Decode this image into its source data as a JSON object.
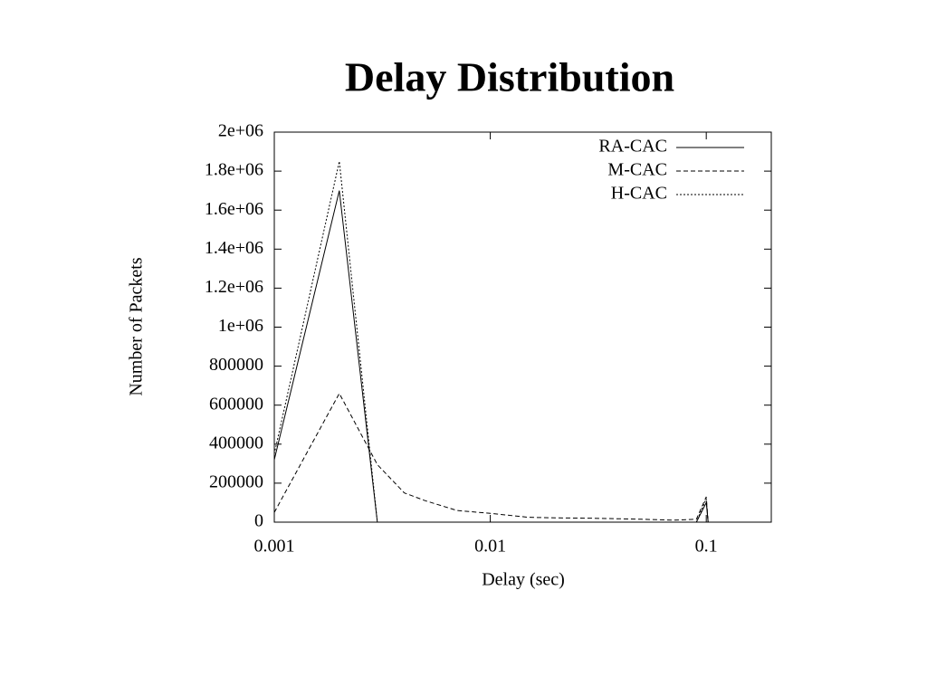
{
  "chart_data": {
    "type": "line",
    "title": "Delay Distribution",
    "xlabel": "Delay (sec)",
    "ylabel": "Number of Packets",
    "xscale": "log",
    "legend": "upper right",
    "x": [
      0.001,
      0.002,
      0.003,
      0.004,
      0.005,
      0.007,
      0.01,
      0.015,
      0.02,
      0.03,
      0.05,
      0.07,
      0.09,
      0.1,
      0.102
    ],
    "series": [
      {
        "name": "RA-CAC",
        "color": "#000000",
        "dash": "none",
        "values": [
          320000,
          1700000,
          0,
          0,
          0,
          0,
          0,
          0,
          0,
          0,
          0,
          0,
          0,
          100000,
          0
        ]
      },
      {
        "name": "M-CAC",
        "color": "#000000",
        "dash": "5,3",
        "values": [
          50000,
          660000,
          295000,
          150000,
          110000,
          60000,
          45000,
          25000,
          22000,
          20000,
          15000,
          10000,
          15000,
          130000,
          0
        ]
      },
      {
        "name": "H-CAC",
        "color": "#000000",
        "dash": "2,2",
        "values": [
          350000,
          1850000,
          0,
          0,
          0,
          0,
          0,
          0,
          0,
          0,
          0,
          0,
          0,
          120000,
          0
        ]
      }
    ],
    "xlim": [
      0.001,
      0.2
    ],
    "xticks": [
      0.001,
      0.01,
      0.1
    ],
    "ylim": [
      0,
      2000000
    ],
    "yticks": [
      0,
      200000,
      400000,
      600000,
      800000,
      {
        "value": 1000000,
        "label": "1e+06"
      },
      {
        "value": 1200000,
        "label": "1.2e+06"
      },
      {
        "value": 1400000,
        "label": "1.4e+06"
      },
      {
        "value": 1600000,
        "label": "1.6e+06"
      },
      {
        "value": 1800000,
        "label": "1.8e+06"
      },
      {
        "value": 2000000,
        "label": "2e+06"
      }
    ]
  }
}
